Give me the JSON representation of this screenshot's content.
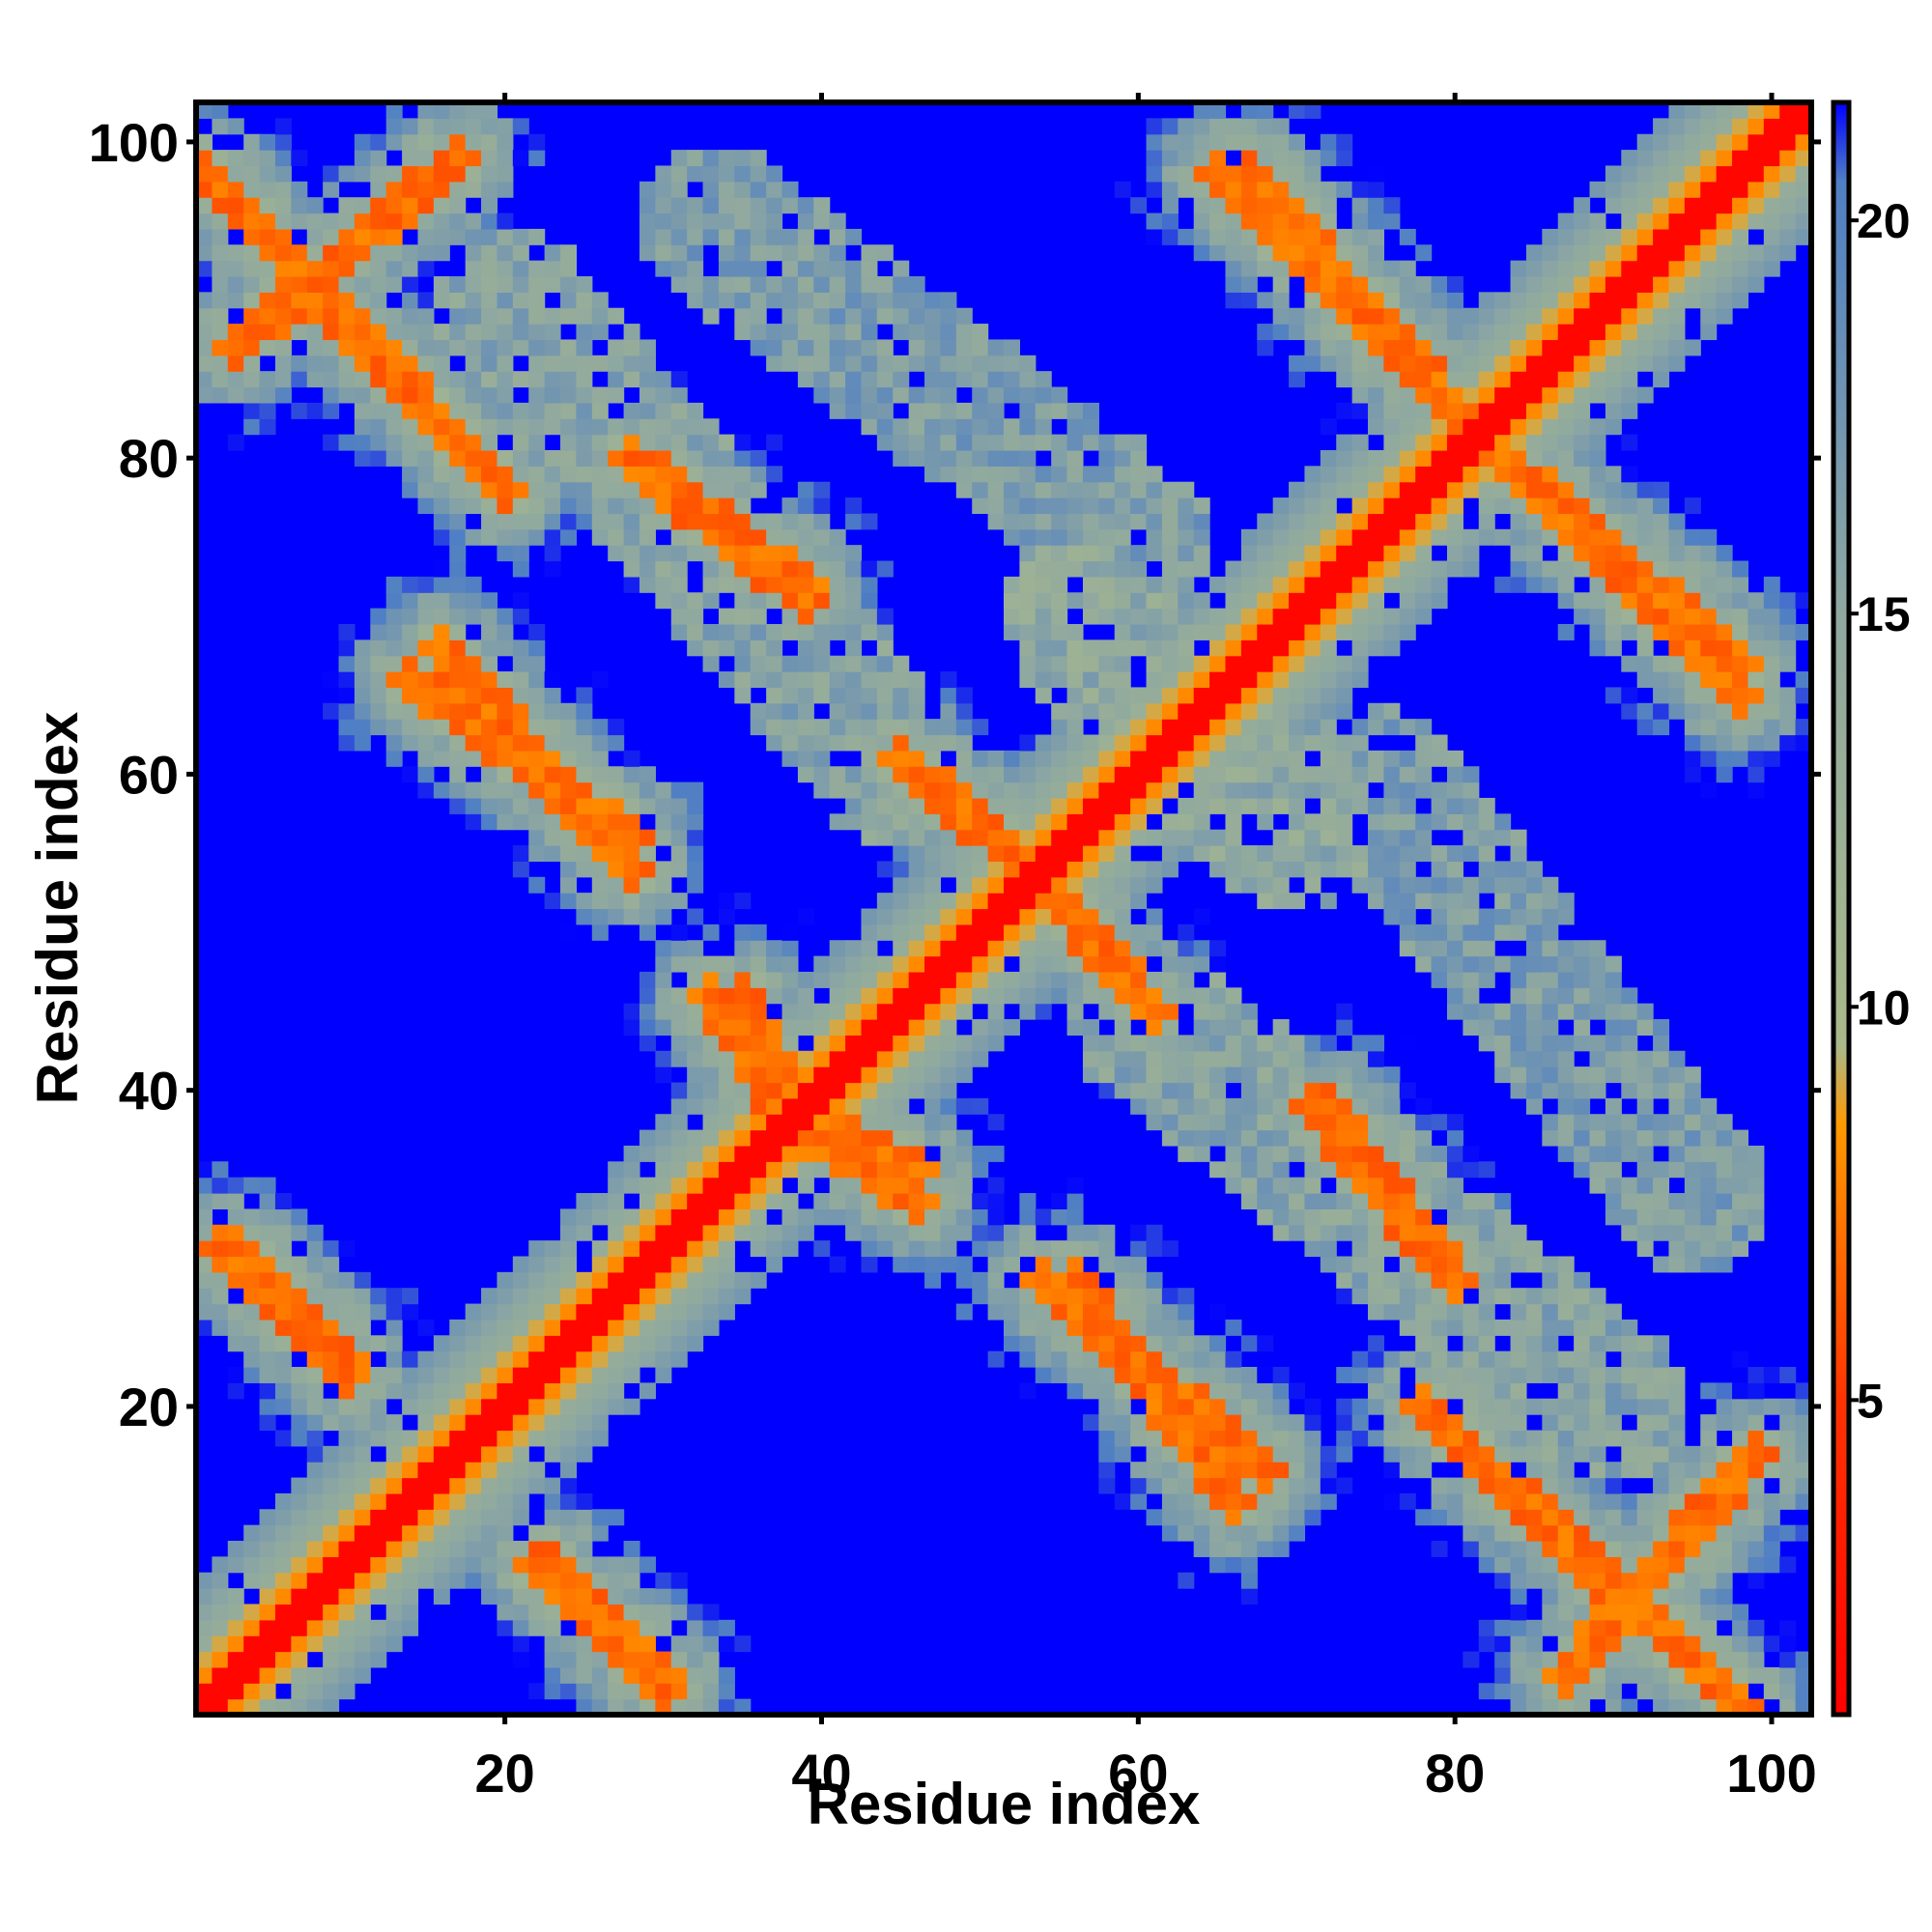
{
  "chart_data": {
    "type": "heatmap",
    "title": "",
    "xlabel": "Residue index",
    "ylabel": "Residue index",
    "xlim": [
      1,
      102
    ],
    "ylim": [
      1,
      102
    ],
    "x_ticks": [
      20,
      40,
      60,
      80,
      100
    ],
    "y_ticks": [
      20,
      40,
      60,
      80,
      100
    ],
    "x_tick_labels": [
      "20",
      "40",
      "60",
      "80",
      "100"
    ],
    "y_tick_labels": [
      "20",
      "40",
      "60",
      "80",
      "100"
    ],
    "colorbar": {
      "range": [
        1,
        21.5
      ],
      "ticks": [
        5,
        10,
        15,
        20
      ],
      "tick_labels": [
        "5",
        "10",
        "15",
        "20"
      ],
      "stops": [
        {
          "value": 1,
          "color": "#ff0000"
        },
        {
          "value": 5,
          "color": "#ff3300"
        },
        {
          "value": 8.5,
          "color": "#ff9900"
        },
        {
          "value": 9.5,
          "color": "#a9b98a"
        },
        {
          "value": 15,
          "color": "#8fa8a0"
        },
        {
          "value": 20.5,
          "color": "#4f7fc4"
        },
        {
          "value": 21.5,
          "color": "#0000ff"
        }
      ]
    },
    "matrix_description_free": true,
    "n_residues": 102,
    "diagonal_contact_value": 1.5,
    "background_value": 21.5,
    "contact_bands": [
      {
        "x": [
          1,
          20
        ],
        "y": [
          98,
          78
        ],
        "value": 6
      },
      {
        "x": [
          14,
          28
        ],
        "y": [
          66,
          56
        ],
        "value": 6
      },
      {
        "x": [
          28,
          39
        ],
        "y": [
          80,
          72
        ],
        "value": 6
      },
      {
        "x": [
          45,
          52
        ],
        "y": [
          61,
          55
        ],
        "value": 6
      },
      {
        "x": [
          55,
          60
        ],
        "y": [
          52,
          46
        ],
        "value": 6
      },
      {
        "x": [
          35,
          38
        ],
        "y": [
          46,
          40
        ],
        "value": 6
      },
      {
        "x": [
          38,
          46
        ],
        "y": [
          38,
          33
        ],
        "value": 6
      },
      {
        "x": [
          2,
          10
        ],
        "y": [
          30,
          23
        ],
        "value": 6
      },
      {
        "x": [
          22,
          30
        ],
        "y": [
          10,
          3
        ],
        "value": 6
      },
      {
        "x": [
          54,
          68
        ],
        "y": [
          28,
          16
        ],
        "value": 6
      },
      {
        "x": [
          71,
          80
        ],
        "y": [
          39,
          28
        ],
        "value": 6
      },
      {
        "x": [
          65,
          81
        ],
        "y": [
          98,
          82
        ],
        "value": 6
      },
      {
        "x": [
          82,
          98
        ],
        "y": [
          81,
          67
        ],
        "value": 6
      },
      {
        "x": [
          87,
          99
        ],
        "y": [
          3,
          17
        ],
        "value": 6
      },
      {
        "x": [
          56,
          70
        ],
        "y": [
          70,
          56
        ],
        "value": 12
      },
      {
        "x": [
          33,
          60
        ],
        "y": [
          95,
          75
        ],
        "value": 14
      },
      {
        "x": [
          60,
          90
        ],
        "y": [
          45,
          20
        ],
        "value": 13
      }
    ]
  }
}
